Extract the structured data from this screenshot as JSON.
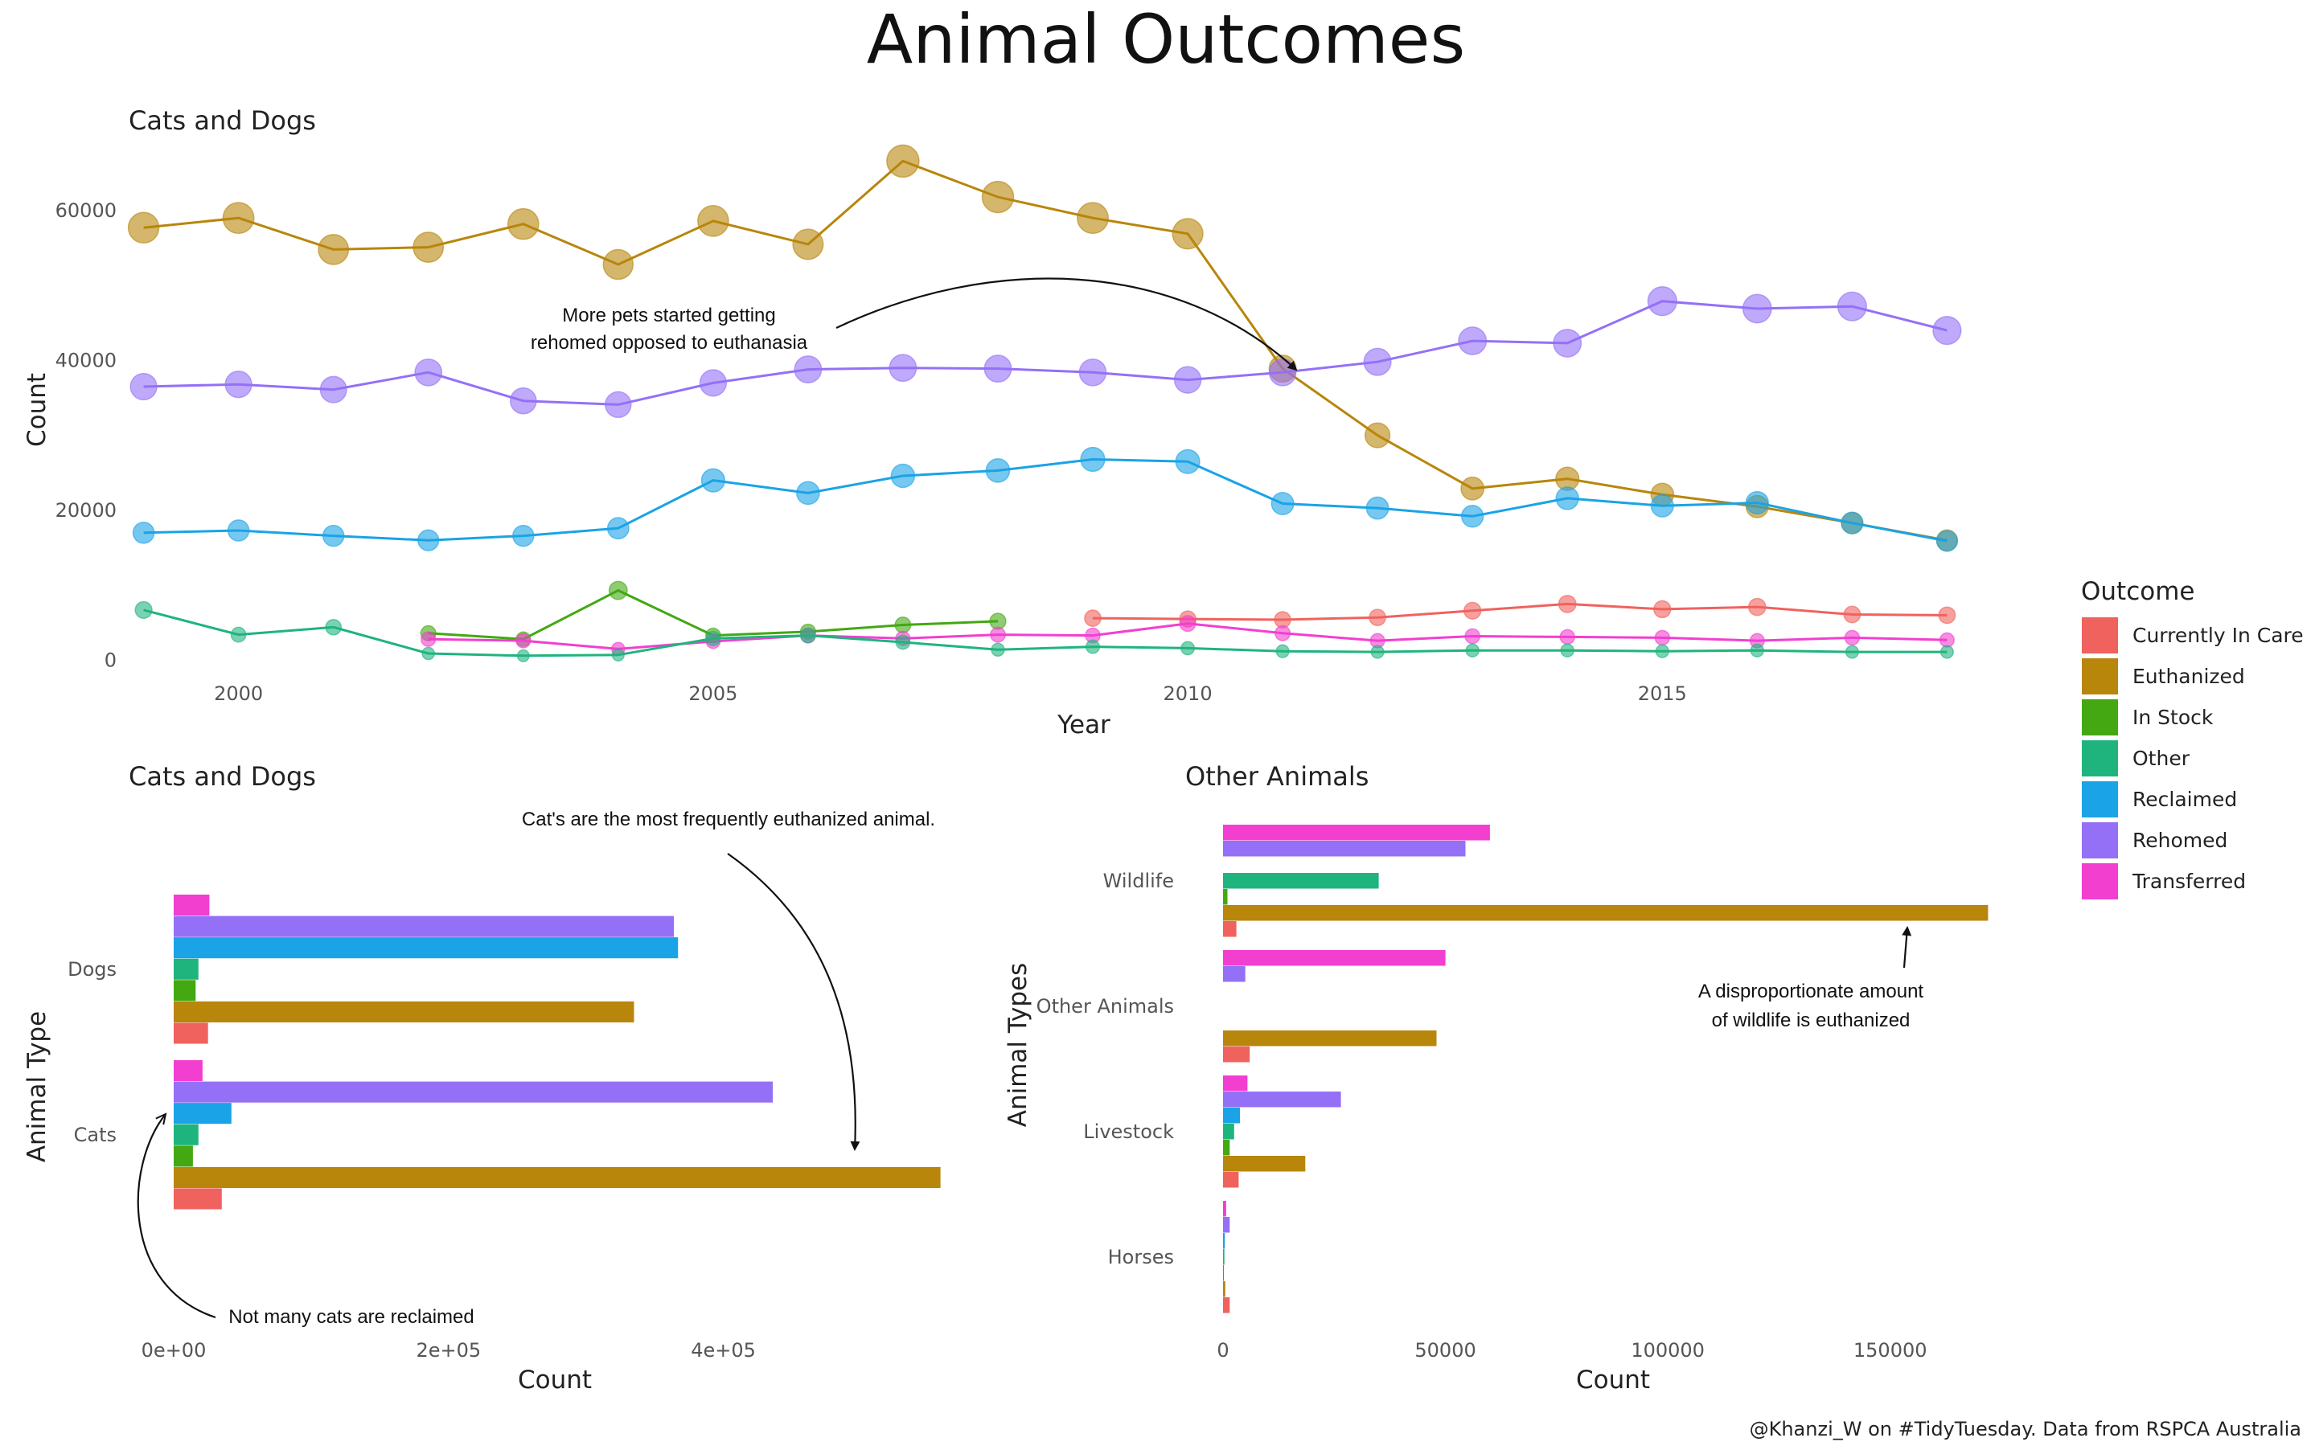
{
  "title": "Animal Outcomes",
  "caption": "@Khanzi_W on #TidyTuesday. Data from RSPCA Australia",
  "legend": {
    "title": "Outcome",
    "placement": "right",
    "items": [
      {
        "label": "Currently In Care",
        "color": "#F0625E"
      },
      {
        "label": "Euthanized",
        "color": "#B8860B"
      },
      {
        "label": "In Stock",
        "color": "#43A812"
      },
      {
        "label": "Other",
        "color": "#1FB47E"
      },
      {
        "label": "Reclaimed",
        "color": "#1AA3E6"
      },
      {
        "label": "Rehomed",
        "color": "#9470F7"
      },
      {
        "label": "Transferred",
        "color": "#F23FD0"
      }
    ]
  },
  "chart_data": [
    {
      "type": "line",
      "subtitle": "Cats and Dogs",
      "xlabel": "Year",
      "ylabel": "Count",
      "xlim": [
        1998.8,
        2018.2
      ],
      "ylim": [
        -2000,
        72000
      ],
      "xticks": [
        "2000",
        "2005",
        "2010",
        "2015"
      ],
      "yticks": [
        "0",
        "20000",
        "40000",
        "60000"
      ],
      "grid": false,
      "annotation": "More pets started getting\nrehomed opposed to euthanasia",
      "series": [
        {
          "name": "Euthanized",
          "color": "#B8860B",
          "points": [
            [
              1999,
              57700
            ],
            [
              2000,
              59000
            ],
            [
              2001,
              54800
            ],
            [
              2002,
              55100
            ],
            [
              2003,
              58200
            ],
            [
              2004,
              52800
            ],
            [
              2005,
              58600
            ],
            [
              2006,
              55500
            ],
            [
              2007,
              66600
            ],
            [
              2008,
              61800
            ],
            [
              2009,
              59000
            ],
            [
              2010,
              56900
            ],
            [
              2011,
              38900
            ],
            [
              2012,
              30000
            ],
            [
              2013,
              22900
            ],
            [
              2014,
              24200
            ],
            [
              2015,
              22100
            ],
            [
              2016,
              20500
            ],
            [
              2017,
              18300
            ],
            [
              2018,
              16000
            ]
          ]
        },
        {
          "name": "Rehomed",
          "color": "#9470F7",
          "points": [
            [
              1999,
              36500
            ],
            [
              2000,
              36800
            ],
            [
              2001,
              36100
            ],
            [
              2002,
              38400
            ],
            [
              2003,
              34600
            ],
            [
              2004,
              34100
            ],
            [
              2005,
              37000
            ],
            [
              2006,
              38800
            ],
            [
              2007,
              39000
            ],
            [
              2008,
              38900
            ],
            [
              2009,
              38400
            ],
            [
              2010,
              37400
            ],
            [
              2011,
              38400
            ],
            [
              2012,
              39800
            ],
            [
              2013,
              42600
            ],
            [
              2014,
              42300
            ],
            [
              2015,
              47900
            ],
            [
              2016,
              46900
            ],
            [
              2017,
              47200
            ],
            [
              2018,
              44000
            ]
          ]
        },
        {
          "name": "Reclaimed",
          "color": "#1AA3E6",
          "points": [
            [
              1999,
              17000
            ],
            [
              2000,
              17300
            ],
            [
              2001,
              16600
            ],
            [
              2002,
              16000
            ],
            [
              2003,
              16600
            ],
            [
              2004,
              17600
            ],
            [
              2005,
              24000
            ],
            [
              2006,
              22300
            ],
            [
              2007,
              24600
            ],
            [
              2008,
              25300
            ],
            [
              2009,
              26800
            ],
            [
              2010,
              26500
            ],
            [
              2011,
              20900
            ],
            [
              2012,
              20300
            ],
            [
              2013,
              19200
            ],
            [
              2014,
              21600
            ],
            [
              2015,
              20600
            ],
            [
              2016,
              21000
            ],
            [
              2017,
              18300
            ],
            [
              2018,
              15900
            ]
          ]
        },
        {
          "name": "Currently In Care",
          "color": "#F0625E",
          "points": [
            [
              2009,
              5600
            ],
            [
              2010,
              5500
            ],
            [
              2011,
              5400
            ],
            [
              2012,
              5700
            ],
            [
              2013,
              6600
            ],
            [
              2014,
              7500
            ],
            [
              2015,
              6800
            ],
            [
              2016,
              7100
            ],
            [
              2017,
              6100
            ],
            [
              2018,
              6000
            ]
          ]
        },
        {
          "name": "In Stock",
          "color": "#43A812",
          "points": [
            [
              2002,
              3600
            ],
            [
              2003,
              2800
            ],
            [
              2004,
              9300
            ],
            [
              2005,
              3300
            ],
            [
              2006,
              3800
            ],
            [
              2007,
              4700
            ],
            [
              2008,
              5200
            ]
          ]
        },
        {
          "name": "Transferred",
          "color": "#F23FD0",
          "points": [
            [
              2002,
              2800
            ],
            [
              2003,
              2600
            ],
            [
              2004,
              1500
            ],
            [
              2005,
              2500
            ],
            [
              2006,
              3300
            ],
            [
              2007,
              2900
            ],
            [
              2008,
              3400
            ],
            [
              2009,
              3300
            ],
            [
              2010,
              4900
            ],
            [
              2011,
              3600
            ],
            [
              2012,
              2600
            ],
            [
              2013,
              3200
            ],
            [
              2014,
              3100
            ],
            [
              2015,
              3000
            ],
            [
              2016,
              2600
            ],
            [
              2017,
              3000
            ],
            [
              2018,
              2700
            ]
          ]
        },
        {
          "name": "Other",
          "color": "#1FB47E",
          "points": [
            [
              1999,
              6700
            ],
            [
              2000,
              3400
            ],
            [
              2001,
              4400
            ],
            [
              2002,
              900
            ],
            [
              2003,
              600
            ],
            [
              2004,
              700
            ],
            [
              2005,
              2900
            ],
            [
              2006,
              3300
            ],
            [
              2007,
              2400
            ],
            [
              2008,
              1400
            ],
            [
              2009,
              1800
            ],
            [
              2010,
              1600
            ],
            [
              2011,
              1200
            ],
            [
              2012,
              1100
            ],
            [
              2013,
              1300
            ],
            [
              2014,
              1300
            ],
            [
              2015,
              1200
            ],
            [
              2016,
              1300
            ],
            [
              2017,
              1100
            ],
            [
              2018,
              1100
            ]
          ]
        }
      ]
    },
    {
      "type": "bar",
      "orientation": "horizontal",
      "subtitle": "Cats and Dogs",
      "xlabel": "Count",
      "ylabel": "Animal Type",
      "xlim": [
        0,
        560000
      ],
      "xticks": [
        "0e+00",
        "2e+05",
        "4e+05"
      ],
      "categories": [
        "Dogs",
        "Cats"
      ],
      "annotations": [
        "Cat's are the most frequently euthanized animal.",
        "Not many cats are reclaimed"
      ],
      "series": [
        {
          "name": "Currently In Care",
          "values": [
            25000,
            35000
          ]
        },
        {
          "name": "Euthanized",
          "values": [
            335000,
            558000
          ]
        },
        {
          "name": "In Stock",
          "values": [
            16000,
            14000
          ]
        },
        {
          "name": "Other",
          "values": [
            18000,
            18000
          ]
        },
        {
          "name": "Reclaimed",
          "values": [
            367000,
            42000
          ]
        },
        {
          "name": "Rehomed",
          "values": [
            364000,
            436000
          ]
        },
        {
          "name": "Transferred",
          "values": [
            26000,
            21000
          ]
        }
      ]
    },
    {
      "type": "bar",
      "orientation": "horizontal",
      "subtitle": "Other Animals",
      "xlabel": "Count",
      "ylabel": "Animal Types",
      "xlim": [
        0,
        175000
      ],
      "xticks": [
        "0",
        "50000",
        "100000",
        "150000"
      ],
      "categories": [
        "Wildlife",
        "Other Animals",
        "Livestock",
        "Horses"
      ],
      "annotation": "A disproportionate amount\nof wildlife is euthanized",
      "series": [
        {
          "name": "Currently In Care",
          "values": [
            3000,
            6000,
            3500,
            1500
          ]
        },
        {
          "name": "Euthanized",
          "values": [
            172000,
            48000,
            18500,
            500
          ]
        },
        {
          "name": "In Stock",
          "values": [
            1000,
            0,
            1500,
            200
          ]
        },
        {
          "name": "Other",
          "values": [
            35000,
            0,
            2500,
            300
          ]
        },
        {
          "name": "Reclaimed",
          "values": [
            0,
            0,
            3800,
            400
          ]
        },
        {
          "name": "Rehomed",
          "values": [
            54500,
            5000,
            26500,
            1500
          ]
        },
        {
          "name": "Transferred",
          "values": [
            60000,
            50000,
            5500,
            700
          ]
        }
      ]
    }
  ]
}
